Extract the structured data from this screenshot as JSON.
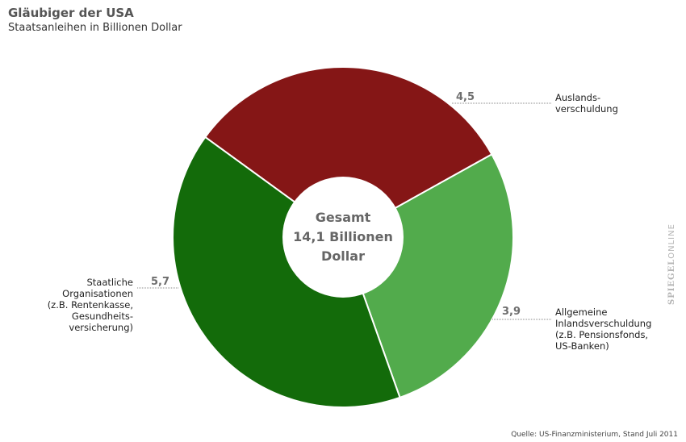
{
  "title": "Gläubiger der USA",
  "subtitle": "Staatsanleihen in Billionen Dollar",
  "center": {
    "line1": "Gesamt",
    "line2": "14,1 Billionen",
    "line3": "Dollar"
  },
  "source": "Quelle: US-Finanzministerium, Stand Juli 2011",
  "brand": {
    "part1": "SPIEGEL",
    "part2": "ONLINE"
  },
  "chart_data": {
    "type": "pie",
    "variant": "donut",
    "total_label": "Gesamt 14,1 Billionen Dollar",
    "slices": [
      {
        "value": 4.5,
        "value_label": "4,5",
        "label_lines": [
          "Auslands-",
          "verschuldung"
        ],
        "color": "#851616"
      },
      {
        "value": 3.9,
        "value_label": "3,9",
        "label_lines": [
          "Allgemeine",
          "Inlandsverschuldung",
          "(z.B. Pensionsfonds,",
          "US-Banken)"
        ],
        "color": "#52ab4c"
      },
      {
        "value": 5.7,
        "value_label": "5,7",
        "label_lines": [
          "Staatliche",
          "Organisationen",
          "(z.B. Rentenkasse,",
          "Gesundheits-",
          "versicherung)"
        ],
        "color": "#136b0a"
      }
    ]
  }
}
